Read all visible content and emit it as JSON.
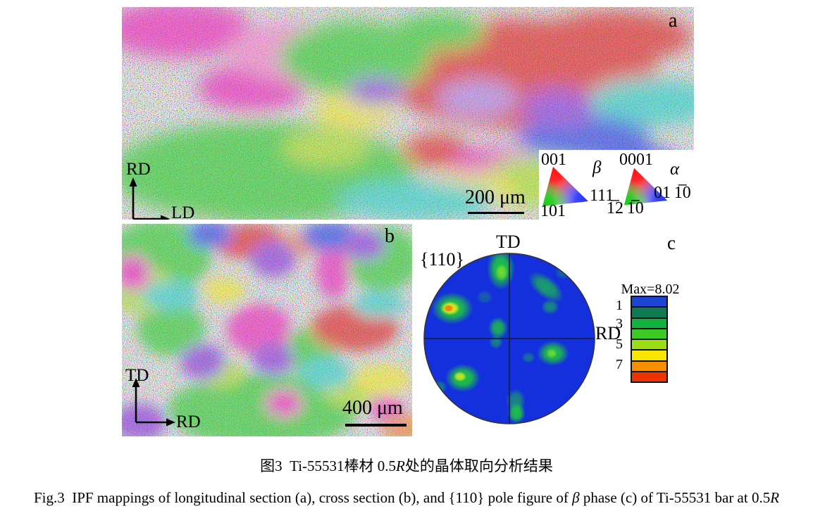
{
  "figure": {
    "panel_a": {
      "label": "a",
      "axis_vertical": "RD",
      "axis_horizontal": "LD",
      "scale_bar": "200 μm"
    },
    "panel_b": {
      "label": "b",
      "axis_vertical": "TD",
      "axis_horizontal": "RD",
      "scale_bar": "400 μm"
    },
    "panel_c": {
      "label": "c",
      "plane_label": "{110}",
      "axis_top": "TD",
      "axis_right": "RD",
      "pole_figure": {
        "background_color": "#1330dc",
        "blob_color": "#1fce38",
        "hotspot_core_color": "#f07810",
        "max_intensity": "8.02"
      },
      "colorbar": {
        "max_label": "Max=8.02",
        "tick_labels": [
          "1",
          "3",
          "5",
          "7"
        ],
        "segment_colors": [
          "#1c45d4",
          "#0e7a52",
          "#12b33c",
          "#3bcb24",
          "#9ddd16",
          "#f8e600",
          "#f79000",
          "#ee3300"
        ]
      }
    },
    "ipf_legend": {
      "beta": {
        "phase_symbol": "β",
        "vertex_top": "001",
        "vertex_bottom_left": "101",
        "vertex_right": "111"
      },
      "alpha": {
        "phase_symbol": "α",
        "vertex_top": "0001",
        "vertex_bottom_left": "1̅2 1̅0",
        "vertex_right": "01 1̅0"
      }
    },
    "caption_zh": {
      "pre": "图3 Ti-55531棒材 0.5",
      "italic": "R",
      "post": "处的晶体取向分析结果"
    },
    "caption_en": {
      "pre": "Fig.3 IPF mappings of longitudinal section (a), cross section (b), and {110} pole figure of ",
      "italic1": "β",
      "mid": " phase (c) of Ti-55531 bar at 0.5",
      "italic2": "R"
    }
  }
}
